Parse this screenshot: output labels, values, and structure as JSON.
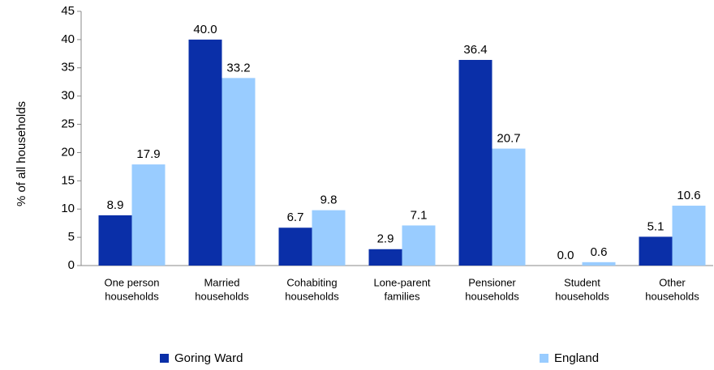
{
  "chart_data": {
    "type": "bar",
    "ylabel": "% of all households",
    "categories": [
      [
        "One person",
        "households"
      ],
      [
        "Married",
        "households"
      ],
      [
        "Cohabiting",
        "households"
      ],
      [
        "Lone-parent",
        "families"
      ],
      [
        "Pensioner",
        "households"
      ],
      [
        "Student",
        "households"
      ],
      [
        "Other",
        "households"
      ]
    ],
    "series": [
      {
        "name": "Goring Ward",
        "color": "#0a2fa8",
        "values": [
          8.9,
          40.0,
          6.7,
          2.9,
          36.4,
          0.0,
          5.1
        ],
        "value_labels": [
          "8.9",
          "40.0",
          "6.7",
          "2.9",
          "36.4",
          "0.0",
          "5.1"
        ]
      },
      {
        "name": "England",
        "color": "#99ccff",
        "values": [
          17.9,
          33.2,
          9.8,
          7.1,
          20.7,
          0.6,
          10.6
        ],
        "value_labels": [
          "17.9",
          "33.2",
          "9.8",
          "7.1",
          "20.7",
          "0.6",
          "10.6"
        ]
      }
    ],
    "ylim": [
      0,
      45
    ],
    "yticks": [
      0,
      5,
      10,
      15,
      20,
      25,
      30,
      35,
      40,
      45
    ],
    "grid": false,
    "legend": "bottom"
  }
}
